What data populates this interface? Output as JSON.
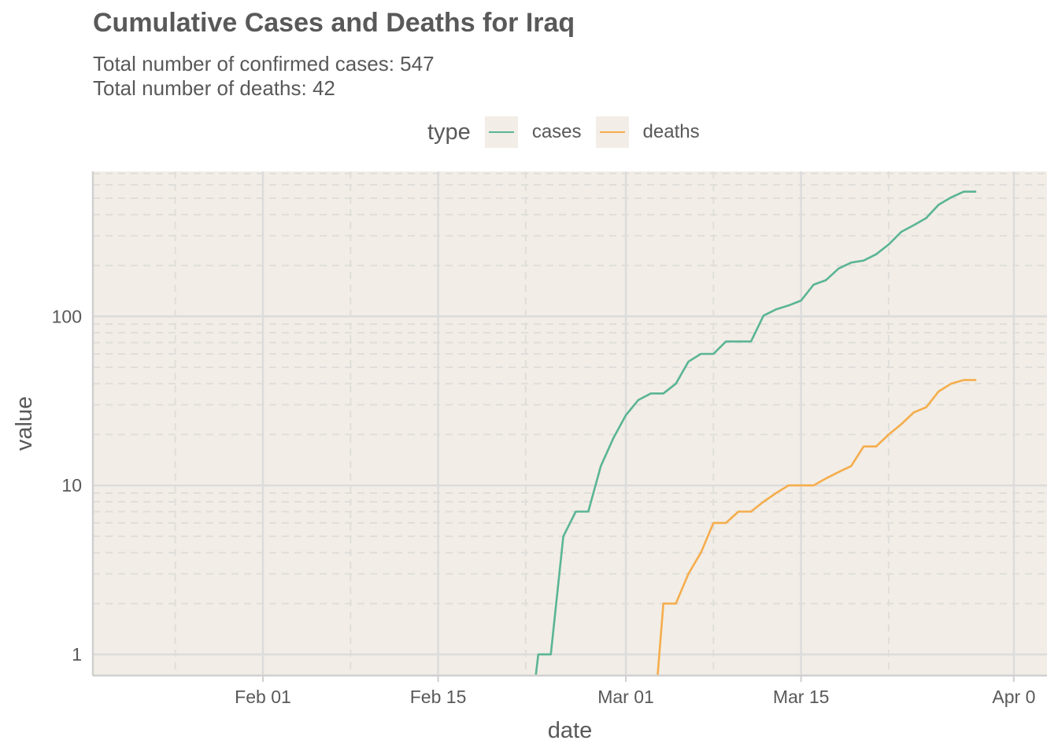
{
  "header": {
    "title": "Cumulative Cases and Deaths for Iraq",
    "subtitle_line1": "Total number of confirmed cases: 547",
    "subtitle_line2": "Total number of deaths: 42"
  },
  "legend": {
    "title": "type",
    "items": [
      {
        "label": "cases",
        "color": "#5ab595"
      },
      {
        "label": "deaths",
        "color": "#f5ad4c"
      }
    ]
  },
  "chart_data": {
    "type": "line",
    "xlabel": "date",
    "ylabel": "value",
    "y_scale": "log10",
    "ylim": [
      0.75,
      720
    ],
    "xlim": [
      "2020-01-22",
      "2020-03-31"
    ],
    "x_ticks": [
      {
        "date": "2020-02-01",
        "label": "Feb 01"
      },
      {
        "date": "2020-02-15",
        "label": "Feb 15"
      },
      {
        "date": "2020-03-01",
        "label": "Mar 01"
      },
      {
        "date": "2020-03-15",
        "label": "Mar 15"
      },
      {
        "date": "2020-04-01",
        "label": "Apr 0"
      }
    ],
    "x_minor_ticks": [
      "2020-01-25",
      "2020-02-08",
      "2020-02-22",
      "2020-03-08",
      "2020-03-22"
    ],
    "y_ticks": [
      {
        "value": 1,
        "label": "1"
      },
      {
        "value": 10,
        "label": "10"
      },
      {
        "value": 100,
        "label": "100"
      }
    ],
    "y_minor_ticks": [
      2,
      3,
      4,
      5,
      6,
      7,
      8,
      9,
      20,
      30,
      40,
      50,
      60,
      70,
      80,
      90,
      200,
      300,
      400,
      500,
      600,
      700
    ],
    "grid": true,
    "legend_position": "top",
    "series": [
      {
        "name": "cases",
        "color": "#5ab595",
        "x": [
          "2020-02-22",
          "2020-02-23",
          "2020-02-24",
          "2020-02-25",
          "2020-02-26",
          "2020-02-27",
          "2020-02-28",
          "2020-02-29",
          "2020-03-01",
          "2020-03-02",
          "2020-03-03",
          "2020-03-04",
          "2020-03-05",
          "2020-03-06",
          "2020-03-07",
          "2020-03-08",
          "2020-03-09",
          "2020-03-10",
          "2020-03-11",
          "2020-03-12",
          "2020-03-13",
          "2020-03-14",
          "2020-03-15",
          "2020-03-16",
          "2020-03-17",
          "2020-03-18",
          "2020-03-19",
          "2020-03-20",
          "2020-03-21",
          "2020-03-22",
          "2020-03-23",
          "2020-03-24",
          "2020-03-25",
          "2020-03-26",
          "2020-03-27",
          "2020-03-28",
          "2020-03-29"
        ],
        "values": [
          0,
          1,
          1,
          5,
          7,
          7,
          13,
          19,
          26,
          32,
          35,
          35,
          40,
          54,
          60,
          60,
          71,
          71,
          71,
          101,
          110,
          116,
          124,
          154,
          164,
          192,
          208,
          214,
          233,
          266,
          316,
          346,
          382,
          458,
          506,
          547,
          547
        ]
      },
      {
        "name": "deaths",
        "color": "#f5ad4c",
        "x": [
          "2020-03-03",
          "2020-03-04",
          "2020-03-05",
          "2020-03-06",
          "2020-03-07",
          "2020-03-08",
          "2020-03-09",
          "2020-03-10",
          "2020-03-11",
          "2020-03-12",
          "2020-03-13",
          "2020-03-14",
          "2020-03-15",
          "2020-03-16",
          "2020-03-17",
          "2020-03-18",
          "2020-03-19",
          "2020-03-20",
          "2020-03-21",
          "2020-03-22",
          "2020-03-23",
          "2020-03-24",
          "2020-03-25",
          "2020-03-26",
          "2020-03-27",
          "2020-03-28",
          "2020-03-29"
        ],
        "values": [
          0,
          2,
          2,
          3,
          4,
          6,
          6,
          7,
          7,
          8,
          9,
          10,
          10,
          10,
          11,
          12,
          13,
          17,
          17,
          20,
          23,
          27,
          29,
          36,
          40,
          42,
          42
        ]
      }
    ]
  }
}
